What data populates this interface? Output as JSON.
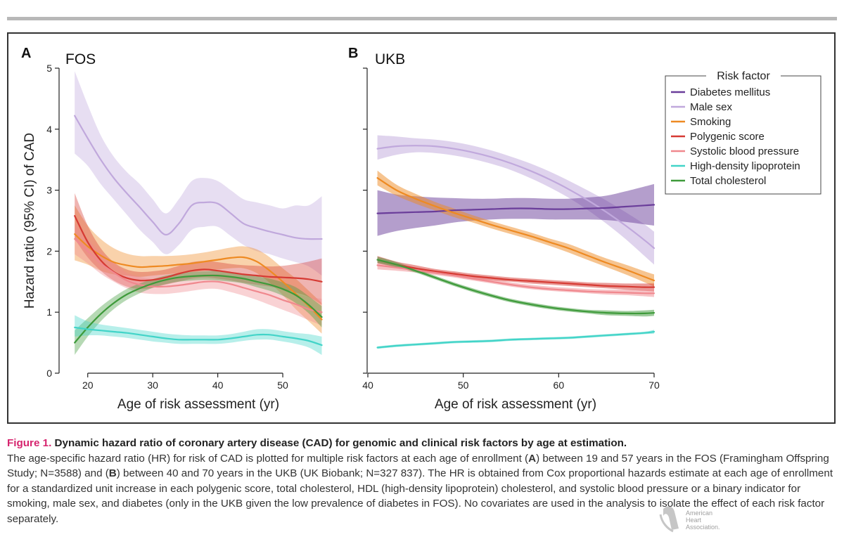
{
  "colors": {
    "diabetes": "#6a3d9a",
    "male_sex": "#c0a8dc",
    "smoking": "#ee8a22",
    "polygenic": "#d63a33",
    "sbp": "#f0888e",
    "hdl": "#42d4c8",
    "total_chol": "#3e9a3a"
  },
  "legend": {
    "title": "Risk factor",
    "items": [
      {
        "key": "diabetes",
        "label": "Diabetes mellitus"
      },
      {
        "key": "male_sex",
        "label": "Male sex"
      },
      {
        "key": "smoking",
        "label": "Smoking"
      },
      {
        "key": "polygenic",
        "label": "Polygenic score"
      },
      {
        "key": "sbp",
        "label": "Systolic blood pressure"
      },
      {
        "key": "hdl",
        "label": "High-density lipoprotein"
      },
      {
        "key": "total_chol",
        "label": "Total cholesterol"
      }
    ]
  },
  "chart_data": [
    {
      "panel_letter": "A",
      "title": "FOS",
      "type": "line",
      "xlabel": "Age of risk assessment (yr)",
      "ylabel": "Hazard ratio (95% CI) of CAD",
      "xlim": [
        17,
        58
      ],
      "ylim": [
        0,
        5
      ],
      "xticks": [
        20,
        30,
        40,
        50
      ],
      "yticks": [
        0,
        1,
        2,
        3,
        4,
        5
      ],
      "x": [
        18,
        20,
        22,
        24,
        26,
        28,
        30,
        32,
        34,
        36,
        38,
        40,
        42,
        44,
        46,
        48,
        50,
        52,
        54,
        56
      ],
      "series": [
        {
          "key": "male_sex",
          "name": "Male sex",
          "values": [
            4.22,
            3.85,
            3.5,
            3.2,
            2.95,
            2.72,
            2.48,
            2.27,
            2.45,
            2.75,
            2.8,
            2.78,
            2.62,
            2.45,
            2.38,
            2.32,
            2.27,
            2.22,
            2.2,
            2.2
          ],
          "lower": [
            3.6,
            3.4,
            3.1,
            2.85,
            2.6,
            2.35,
            2.15,
            1.95,
            2.1,
            2.35,
            2.4,
            2.4,
            2.25,
            2.1,
            2.0,
            1.95,
            1.88,
            1.82,
            1.75,
            1.6
          ],
          "upper": [
            4.95,
            4.4,
            3.9,
            3.55,
            3.3,
            3.1,
            2.85,
            2.62,
            2.85,
            3.15,
            3.2,
            3.15,
            3.0,
            2.85,
            2.8,
            2.75,
            2.7,
            2.75,
            2.75,
            2.9
          ]
        },
        {
          "key": "smoking",
          "name": "Smoking",
          "values": [
            2.28,
            2.08,
            1.93,
            1.82,
            1.77,
            1.74,
            1.75,
            1.76,
            1.78,
            1.8,
            1.83,
            1.86,
            1.89,
            1.9,
            1.83,
            1.68,
            1.5,
            1.3,
            1.1,
            0.88
          ],
          "lower": [
            1.85,
            1.78,
            1.68,
            1.62,
            1.6,
            1.58,
            1.6,
            1.62,
            1.64,
            1.66,
            1.68,
            1.7,
            1.72,
            1.72,
            1.64,
            1.48,
            1.28,
            1.05,
            0.85,
            0.65
          ],
          "upper": [
            2.75,
            2.42,
            2.2,
            2.05,
            1.96,
            1.92,
            1.92,
            1.92,
            1.93,
            1.95,
            1.98,
            2.02,
            2.06,
            2.08,
            2.03,
            1.9,
            1.72,
            1.55,
            1.35,
            1.15
          ]
        },
        {
          "key": "polygenic",
          "name": "Polygenic score",
          "values": [
            2.58,
            2.15,
            1.85,
            1.66,
            1.56,
            1.52,
            1.53,
            1.57,
            1.63,
            1.68,
            1.7,
            1.68,
            1.65,
            1.62,
            1.6,
            1.58,
            1.57,
            1.56,
            1.54,
            1.5
          ],
          "lower": [
            2.2,
            1.9,
            1.68,
            1.52,
            1.42,
            1.38,
            1.4,
            1.45,
            1.5,
            1.55,
            1.57,
            1.55,
            1.52,
            1.48,
            1.45,
            1.42,
            1.38,
            1.32,
            1.25,
            1.12
          ],
          "upper": [
            2.95,
            2.42,
            2.05,
            1.82,
            1.7,
            1.66,
            1.67,
            1.7,
            1.76,
            1.82,
            1.84,
            1.82,
            1.79,
            1.77,
            1.76,
            1.75,
            1.76,
            1.79,
            1.83,
            1.88
          ]
        },
        {
          "key": "sbp",
          "name": "Systolic blood pressure",
          "values": [
            2.2,
            2.0,
            1.8,
            1.65,
            1.52,
            1.45,
            1.42,
            1.42,
            1.44,
            1.47,
            1.5,
            1.5,
            1.46,
            1.4,
            1.34,
            1.28,
            1.2,
            1.13,
            1.05,
            1.0
          ],
          "lower": [
            1.95,
            1.8,
            1.63,
            1.5,
            1.39,
            1.32,
            1.3,
            1.3,
            1.32,
            1.35,
            1.38,
            1.38,
            1.33,
            1.27,
            1.2,
            1.12,
            1.04,
            0.96,
            0.87,
            0.78
          ],
          "upper": [
            2.45,
            2.2,
            1.98,
            1.8,
            1.65,
            1.58,
            1.54,
            1.54,
            1.56,
            1.59,
            1.62,
            1.62,
            1.59,
            1.53,
            1.48,
            1.44,
            1.37,
            1.31,
            1.25,
            1.22
          ]
        },
        {
          "key": "total_chol",
          "name": "Total cholesterol",
          "values": [
            0.5,
            0.75,
            0.97,
            1.15,
            1.29,
            1.39,
            1.47,
            1.53,
            1.57,
            1.59,
            1.6,
            1.6,
            1.58,
            1.55,
            1.5,
            1.45,
            1.38,
            1.28,
            1.12,
            0.92
          ],
          "lower": [
            0.3,
            0.6,
            0.85,
            1.05,
            1.2,
            1.31,
            1.4,
            1.46,
            1.5,
            1.52,
            1.53,
            1.52,
            1.5,
            1.47,
            1.41,
            1.35,
            1.27,
            1.15,
            0.98,
            0.75
          ],
          "upper": [
            0.7,
            0.9,
            1.09,
            1.25,
            1.38,
            1.47,
            1.54,
            1.6,
            1.64,
            1.66,
            1.67,
            1.68,
            1.66,
            1.63,
            1.59,
            1.55,
            1.49,
            1.41,
            1.26,
            1.1
          ]
        },
        {
          "key": "hdl",
          "name": "High-density lipoprotein",
          "values": [
            0.75,
            0.72,
            0.7,
            0.68,
            0.66,
            0.63,
            0.6,
            0.57,
            0.55,
            0.55,
            0.55,
            0.55,
            0.57,
            0.6,
            0.63,
            0.63,
            0.6,
            0.57,
            0.53,
            0.46
          ],
          "lower": [
            0.6,
            0.62,
            0.62,
            0.6,
            0.58,
            0.55,
            0.52,
            0.5,
            0.48,
            0.48,
            0.48,
            0.48,
            0.5,
            0.53,
            0.55,
            0.55,
            0.52,
            0.48,
            0.42,
            0.3
          ],
          "upper": [
            0.95,
            0.85,
            0.8,
            0.77,
            0.74,
            0.71,
            0.68,
            0.65,
            0.63,
            0.62,
            0.62,
            0.62,
            0.64,
            0.68,
            0.72,
            0.72,
            0.69,
            0.66,
            0.64,
            0.6
          ]
        }
      ]
    },
    {
      "panel_letter": "B",
      "title": "UKB",
      "type": "line",
      "xlabel": "Age of risk assessment (yr)",
      "ylabel": "",
      "xlim": [
        40,
        70
      ],
      "ylim": [
        0,
        5
      ],
      "xticks": [
        40,
        50,
        60,
        70
      ],
      "yticks": [
        0,
        1,
        2,
        3,
        4,
        5
      ],
      "x": [
        41,
        43,
        45,
        47,
        49,
        51,
        53,
        55,
        57,
        59,
        61,
        63,
        65,
        67,
        69,
        70
      ],
      "series": [
        {
          "key": "male_sex",
          "name": "Male sex",
          "values": [
            3.68,
            3.72,
            3.73,
            3.72,
            3.68,
            3.62,
            3.54,
            3.44,
            3.32,
            3.18,
            3.02,
            2.84,
            2.64,
            2.42,
            2.18,
            2.05
          ],
          "lower": [
            3.5,
            3.58,
            3.62,
            3.61,
            3.57,
            3.51,
            3.43,
            3.33,
            3.2,
            3.05,
            2.88,
            2.68,
            2.45,
            2.2,
            1.92,
            1.78
          ],
          "upper": [
            3.9,
            3.88,
            3.85,
            3.83,
            3.79,
            3.73,
            3.65,
            3.55,
            3.44,
            3.31,
            3.16,
            3.0,
            2.83,
            2.64,
            2.44,
            2.32
          ]
        },
        {
          "key": "diabetes",
          "name": "Diabetes mellitus",
          "values": [
            2.62,
            2.63,
            2.64,
            2.65,
            2.67,
            2.68,
            2.69,
            2.7,
            2.7,
            2.69,
            2.69,
            2.7,
            2.71,
            2.73,
            2.75,
            2.76
          ],
          "lower": [
            2.25,
            2.33,
            2.38,
            2.42,
            2.47,
            2.5,
            2.52,
            2.53,
            2.53,
            2.52,
            2.52,
            2.52,
            2.51,
            2.48,
            2.44,
            2.42
          ],
          "upper": [
            3.0,
            2.93,
            2.9,
            2.88,
            2.87,
            2.86,
            2.86,
            2.87,
            2.87,
            2.86,
            2.86,
            2.88,
            2.91,
            2.98,
            3.06,
            3.1
          ]
        },
        {
          "key": "smoking",
          "name": "Smoking",
          "values": [
            3.2,
            3.0,
            2.86,
            2.74,
            2.63,
            2.53,
            2.43,
            2.34,
            2.25,
            2.15,
            2.05,
            1.93,
            1.81,
            1.7,
            1.58,
            1.52
          ],
          "lower": [
            3.08,
            2.91,
            2.78,
            2.67,
            2.56,
            2.47,
            2.37,
            2.28,
            2.19,
            2.09,
            1.98,
            1.86,
            1.74,
            1.62,
            1.49,
            1.42
          ],
          "upper": [
            3.32,
            3.09,
            2.94,
            2.81,
            2.7,
            2.59,
            2.49,
            2.4,
            2.31,
            2.21,
            2.12,
            2.0,
            1.88,
            1.78,
            1.67,
            1.62
          ]
        },
        {
          "key": "polygenic",
          "name": "Polygenic score",
          "values": [
            1.86,
            1.78,
            1.72,
            1.67,
            1.63,
            1.59,
            1.56,
            1.53,
            1.51,
            1.49,
            1.47,
            1.45,
            1.43,
            1.42,
            1.41,
            1.41
          ],
          "lower": [
            1.8,
            1.73,
            1.67,
            1.63,
            1.59,
            1.55,
            1.52,
            1.5,
            1.47,
            1.45,
            1.43,
            1.41,
            1.39,
            1.37,
            1.35,
            1.34
          ],
          "upper": [
            1.92,
            1.83,
            1.77,
            1.71,
            1.67,
            1.63,
            1.6,
            1.57,
            1.55,
            1.53,
            1.51,
            1.49,
            1.48,
            1.47,
            1.47,
            1.47
          ]
        },
        {
          "key": "sbp",
          "name": "Systolic blood pressure",
          "values": [
            1.77,
            1.73,
            1.69,
            1.65,
            1.6,
            1.55,
            1.5,
            1.45,
            1.41,
            1.38,
            1.36,
            1.34,
            1.33,
            1.32,
            1.31,
            1.31
          ],
          "lower": [
            1.7,
            1.68,
            1.65,
            1.61,
            1.57,
            1.52,
            1.47,
            1.42,
            1.38,
            1.35,
            1.33,
            1.31,
            1.29,
            1.28,
            1.26,
            1.25
          ],
          "upper": [
            1.84,
            1.78,
            1.73,
            1.69,
            1.64,
            1.59,
            1.54,
            1.49,
            1.45,
            1.42,
            1.4,
            1.38,
            1.37,
            1.37,
            1.37,
            1.38
          ]
        },
        {
          "key": "total_chol",
          "name": "Total cholesterol",
          "values": [
            1.86,
            1.78,
            1.68,
            1.57,
            1.46,
            1.36,
            1.27,
            1.19,
            1.13,
            1.08,
            1.04,
            1.01,
            0.99,
            0.98,
            0.98,
            0.99
          ],
          "lower": [
            1.81,
            1.74,
            1.65,
            1.54,
            1.43,
            1.33,
            1.24,
            1.16,
            1.1,
            1.05,
            1.01,
            0.98,
            0.95,
            0.94,
            0.93,
            0.94
          ],
          "upper": [
            1.91,
            1.82,
            1.71,
            1.6,
            1.49,
            1.39,
            1.3,
            1.22,
            1.16,
            1.11,
            1.07,
            1.04,
            1.03,
            1.02,
            1.03,
            1.04
          ]
        },
        {
          "key": "hdl",
          "name": "High-density lipoprotein",
          "values": [
            0.42,
            0.45,
            0.47,
            0.49,
            0.51,
            0.52,
            0.53,
            0.55,
            0.56,
            0.57,
            0.58,
            0.6,
            0.62,
            0.64,
            0.66,
            0.68
          ],
          "lower": [
            0.4,
            0.43,
            0.45,
            0.47,
            0.49,
            0.5,
            0.51,
            0.53,
            0.54,
            0.55,
            0.56,
            0.58,
            0.6,
            0.62,
            0.64,
            0.65
          ],
          "upper": [
            0.44,
            0.47,
            0.49,
            0.51,
            0.53,
            0.54,
            0.55,
            0.57,
            0.58,
            0.59,
            0.6,
            0.62,
            0.64,
            0.66,
            0.68,
            0.71
          ]
        }
      ]
    }
  ],
  "caption": {
    "label": "Figure 1.",
    "title": "Dynamic hazard ratio of coronary artery disease (CAD) for genomic and clinical risk factors by age at estimation.",
    "body_1": "The age-specific hazard ratio (HR) for risk of CAD is plotted for multiple risk factors at each age of enrollment (",
    "bold_a": "A",
    "body_2": ") between 19 and 57 years in the FOS (Framingham Offspring Study; N=3588) and (",
    "bold_b": "B",
    "body_3": ") between 40 and 70 years in the UKB (UK Biobank; N=327 837). The HR is obtained from Cox proportional hazards estimate at each age of enrollment for a standardized unit increase in each polygenic score, total cholesterol, HDL (high-density lipoprotein) cholesterol, and systolic blood pressure or a binary indicator for smoking, male sex, and diabetes (only in the UKB given the low prevalence of diabetes in FOS). No covariates are used in the analysis to isolate the effect of each risk factor separately."
  },
  "watermark": {
    "line1": "American",
    "line2": "Heart",
    "line3": "Association."
  }
}
